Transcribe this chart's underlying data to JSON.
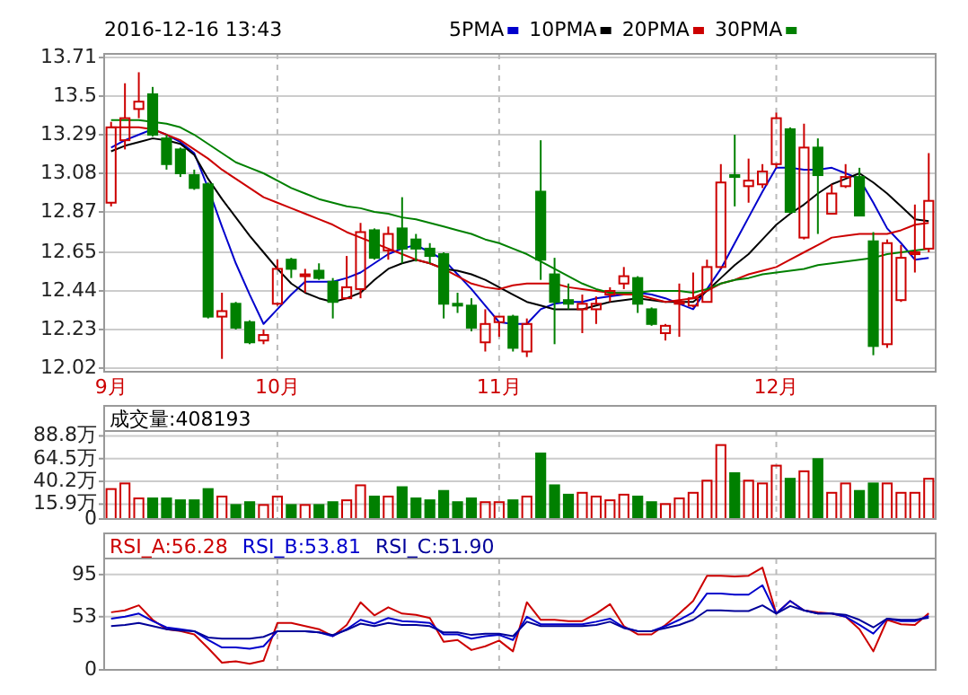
{
  "chart_data": [
    {
      "type": "candlestick",
      "title": "2016-12-16 13:43",
      "legend": "top",
      "grid": true,
      "categories": [
        "9月",
        null,
        null,
        null,
        null,
        null,
        null,
        null,
        null,
        null,
        null,
        null,
        "10月",
        null,
        null,
        null,
        null,
        null,
        null,
        null,
        null,
        null,
        null,
        null,
        null,
        null,
        null,
        null,
        "11月",
        null,
        null,
        null,
        null,
        null,
        null,
        null,
        null,
        null,
        null,
        null,
        null,
        null,
        null,
        null,
        null,
        null,
        null,
        null,
        "12月",
        null,
        null,
        null,
        null,
        null,
        null,
        null,
        null,
        null,
        null,
        null
      ],
      "ylim": [
        12.0,
        13.73
      ],
      "yticks": [
        13.71,
        13.5,
        13.29,
        13.08,
        12.87,
        12.65,
        12.44,
        12.23,
        12.02
      ],
      "ohlc": [
        [
          12.92,
          13.36,
          12.9,
          13.33
        ],
        [
          13.26,
          13.57,
          13.21,
          13.38
        ],
        [
          13.43,
          13.63,
          13.38,
          13.47
        ],
        [
          13.51,
          13.55,
          13.28,
          13.29
        ],
        [
          13.27,
          13.29,
          13.1,
          13.13
        ],
        [
          13.21,
          13.22,
          13.06,
          13.08
        ],
        [
          13.07,
          13.1,
          12.99,
          13.0
        ],
        [
          13.02,
          13.03,
          12.29,
          12.3
        ],
        [
          12.3,
          12.43,
          12.07,
          12.33
        ],
        [
          12.37,
          12.38,
          12.23,
          12.24
        ],
        [
          12.27,
          12.28,
          12.15,
          12.16
        ],
        [
          12.17,
          12.23,
          12.15,
          12.2
        ],
        [
          12.37,
          12.61,
          12.36,
          12.56
        ],
        [
          12.61,
          12.62,
          12.51,
          12.56
        ],
        [
          12.52,
          12.56,
          12.43,
          12.53
        ],
        [
          12.55,
          12.59,
          12.5,
          12.51
        ],
        [
          12.49,
          12.51,
          12.29,
          12.38
        ],
        [
          12.4,
          12.63,
          12.4,
          12.46
        ],
        [
          12.45,
          12.81,
          12.4,
          12.76
        ],
        [
          12.77,
          12.78,
          12.61,
          12.62
        ],
        [
          12.66,
          12.79,
          12.61,
          12.75
        ],
        [
          12.78,
          12.95,
          12.59,
          12.67
        ],
        [
          12.72,
          12.75,
          12.6,
          12.67
        ],
        [
          12.67,
          12.7,
          12.59,
          12.63
        ],
        [
          12.64,
          12.65,
          12.29,
          12.37
        ],
        [
          12.37,
          12.43,
          12.32,
          12.36
        ],
        [
          12.36,
          12.4,
          12.22,
          12.24
        ],
        [
          12.16,
          12.34,
          12.11,
          12.26
        ],
        [
          12.27,
          12.3,
          12.19,
          12.3
        ],
        [
          12.3,
          12.31,
          12.11,
          12.13
        ],
        [
          12.11,
          12.29,
          12.08,
          12.26
        ],
        [
          12.98,
          13.26,
          12.5,
          12.61
        ],
        [
          12.53,
          12.62,
          12.15,
          12.38
        ],
        [
          12.39,
          12.48,
          12.34,
          12.37
        ],
        [
          12.34,
          12.42,
          12.21,
          12.37
        ],
        [
          12.34,
          12.41,
          12.26,
          12.37
        ],
        [
          12.42,
          12.46,
          12.38,
          12.44
        ],
        [
          12.48,
          12.57,
          12.45,
          12.52
        ],
        [
          12.51,
          12.52,
          12.32,
          12.37
        ],
        [
          12.34,
          12.35,
          12.25,
          12.26
        ],
        [
          12.21,
          12.26,
          12.17,
          12.25
        ],
        [
          12.37,
          12.48,
          12.19,
          12.38
        ],
        [
          12.36,
          12.54,
          12.35,
          12.4
        ],
        [
          12.38,
          12.61,
          12.38,
          12.57
        ],
        [
          12.57,
          13.13,
          12.56,
          13.03
        ],
        [
          13.07,
          13.29,
          12.9,
          13.06
        ],
        [
          13.01,
          13.16,
          12.92,
          13.04
        ],
        [
          13.02,
          13.13,
          13.0,
          13.09
        ],
        [
          13.13,
          13.41,
          13.11,
          13.38
        ],
        [
          13.32,
          13.33,
          12.86,
          12.87
        ],
        [
          12.73,
          13.35,
          12.72,
          13.22
        ],
        [
          13.22,
          13.27,
          12.75,
          13.07
        ],
        [
          12.86,
          13.02,
          12.86,
          12.97
        ],
        [
          13.01,
          13.13,
          13.0,
          13.06
        ],
        [
          13.06,
          13.11,
          12.85,
          12.85
        ],
        [
          12.71,
          12.76,
          12.09,
          12.14
        ],
        [
          12.15,
          12.72,
          12.13,
          12.7
        ],
        [
          12.39,
          12.69,
          12.38,
          12.62
        ],
        [
          12.64,
          12.91,
          12.54,
          12.65
        ],
        [
          12.67,
          13.19,
          12.65,
          12.93
        ]
      ],
      "colors": [
        "#cc0000",
        "#cc0000",
        "#cc0000",
        "#008000",
        "#008000",
        "#008000",
        "#008000",
        "#008000",
        "#cc0000",
        "#008000",
        "#008000",
        "#cc0000",
        "#cc0000",
        "#008000",
        "#cc0000",
        "#008000",
        "#008000",
        "#cc0000",
        "#cc0000",
        "#008000",
        "#cc0000",
        "#008000",
        "#008000",
        "#008000",
        "#008000",
        "#008000",
        "#008000",
        "#cc0000",
        "#cc0000",
        "#008000",
        "#cc0000",
        "#008000",
        "#008000",
        "#008000",
        "#cc0000",
        "#cc0000",
        "#cc0000",
        "#cc0000",
        "#008000",
        "#008000",
        "#cc0000",
        "#cc0000",
        "#cc0000",
        "#cc0000",
        "#cc0000",
        "#008000",
        "#cc0000",
        "#cc0000",
        "#cc0000",
        "#008000",
        "#cc0000",
        "#008000",
        "#cc0000",
        "#cc0000",
        "#008000",
        "#008000",
        "#cc0000",
        "#cc0000",
        "#cc0000",
        "#cc0000"
      ],
      "series": [
        {
          "type": "line",
          "name": "5PMA",
          "color": "#0000cc",
          "values": [
            13.22,
            13.26,
            13.29,
            13.32,
            13.29,
            13.25,
            13.19,
            13.0,
            12.79,
            12.59,
            12.42,
            12.26,
            12.34,
            12.42,
            12.49,
            12.49,
            12.49,
            12.51,
            12.54,
            12.59,
            12.64,
            12.67,
            12.69,
            12.65,
            12.61,
            12.53,
            12.45,
            12.36,
            12.27,
            12.26,
            12.26,
            12.34,
            12.37,
            12.38,
            12.38,
            12.4,
            12.41,
            12.42,
            12.43,
            12.42,
            12.4,
            12.37,
            12.34,
            12.45,
            12.56,
            12.7,
            12.84,
            12.98,
            13.11,
            13.11,
            13.1,
            13.1,
            13.11,
            13.08,
            13.05,
            12.92,
            12.78,
            12.7,
            12.61,
            12.62
          ]
        },
        {
          "type": "line",
          "name": "10PMA",
          "color": "#000000",
          "values": [
            13.2,
            13.23,
            13.25,
            13.27,
            13.26,
            13.24,
            13.18,
            13.05,
            12.94,
            12.84,
            12.74,
            12.65,
            12.56,
            12.48,
            12.43,
            12.4,
            12.38,
            12.4,
            12.43,
            12.5,
            12.56,
            12.59,
            12.61,
            12.59,
            12.56,
            12.55,
            12.53,
            12.5,
            12.46,
            12.42,
            12.38,
            12.36,
            12.34,
            12.34,
            12.34,
            12.36,
            12.38,
            12.39,
            12.4,
            12.39,
            12.38,
            12.38,
            12.38,
            12.44,
            12.51,
            12.58,
            12.64,
            12.72,
            12.8,
            12.86,
            12.91,
            12.97,
            13.02,
            13.05,
            13.08,
            13.03,
            12.97,
            12.9,
            12.83,
            12.82
          ]
        },
        {
          "type": "line",
          "name": "20PMA",
          "color": "#cc0000",
          "values": [
            13.33,
            13.33,
            13.33,
            13.32,
            13.29,
            13.26,
            13.21,
            13.16,
            13.1,
            13.05,
            13.0,
            12.95,
            12.92,
            12.89,
            12.86,
            12.83,
            12.8,
            12.76,
            12.73,
            12.7,
            12.67,
            12.64,
            12.61,
            12.59,
            12.56,
            12.52,
            12.48,
            12.46,
            12.45,
            12.47,
            12.48,
            12.48,
            12.48,
            12.46,
            12.45,
            12.44,
            12.43,
            12.42,
            12.42,
            12.4,
            12.38,
            12.39,
            12.4,
            12.44,
            12.48,
            12.5,
            12.53,
            12.55,
            12.57,
            12.61,
            12.65,
            12.69,
            12.73,
            12.74,
            12.75,
            12.75,
            12.75,
            12.77,
            12.8,
            12.81
          ]
        },
        {
          "type": "line",
          "name": "30PMA",
          "color": "#008000",
          "values": [
            13.37,
            13.37,
            13.37,
            13.36,
            13.35,
            13.33,
            13.29,
            13.24,
            13.19,
            13.14,
            13.11,
            13.08,
            13.04,
            13.0,
            12.97,
            12.94,
            12.92,
            12.9,
            12.89,
            12.87,
            12.86,
            12.84,
            12.83,
            12.81,
            12.79,
            12.77,
            12.75,
            12.72,
            12.7,
            12.67,
            12.64,
            12.6,
            12.56,
            12.52,
            12.48,
            12.45,
            12.43,
            12.43,
            12.43,
            12.44,
            12.44,
            12.44,
            12.43,
            12.45,
            12.48,
            12.5,
            12.51,
            12.53,
            12.54,
            12.55,
            12.56,
            12.58,
            12.59,
            12.6,
            12.61,
            12.62,
            12.64,
            12.65,
            12.66,
            12.67
          ]
        }
      ]
    },
    {
      "type": "bar",
      "title": "成交量:408193",
      "grid": true,
      "tick_labels": "y",
      "categories": [
        null,
        null,
        null,
        null,
        null,
        null,
        null,
        null,
        null,
        null,
        null,
        null,
        null,
        null,
        null,
        null,
        null,
        null,
        null,
        null,
        null,
        null,
        null,
        null,
        null,
        null,
        null,
        null,
        null,
        null,
        null,
        null,
        null,
        null,
        null,
        null,
        null,
        null,
        null,
        null,
        null,
        null,
        null,
        null,
        null,
        null,
        null,
        null,
        null,
        null,
        null,
        null,
        null,
        null,
        null,
        null,
        null,
        null,
        null,
        null
      ],
      "ylim": [
        0,
        94
      ],
      "yticks": [
        {
          "value": 88.8,
          "label": "88.8万"
        },
        {
          "value": 64.5,
          "label": "64.5万"
        },
        {
          "value": 40.2,
          "label": "40.2万"
        },
        {
          "value": 15.9,
          "label": "15.9万"
        },
        0
      ],
      "values": [
        32,
        38,
        22,
        22,
        22,
        20,
        20,
        32,
        24,
        15,
        18,
        15,
        24,
        15,
        15,
        15,
        18,
        20,
        36,
        24,
        24,
        34,
        22,
        20,
        30,
        18,
        22,
        18,
        18,
        20,
        24,
        70,
        36,
        26,
        28,
        24,
        20,
        26,
        24,
        18,
        16,
        22,
        28,
        41,
        79,
        49,
        41,
        38,
        57,
        43,
        51,
        64,
        28,
        38,
        30,
        38,
        38,
        28,
        28,
        43
      ],
      "colors": [
        "#cc0000",
        "#cc0000",
        "#cc0000",
        "#008000",
        "#008000",
        "#008000",
        "#008000",
        "#008000",
        "#cc0000",
        "#008000",
        "#008000",
        "#cc0000",
        "#cc0000",
        "#008000",
        "#cc0000",
        "#008000",
        "#008000",
        "#cc0000",
        "#cc0000",
        "#008000",
        "#cc0000",
        "#008000",
        "#008000",
        "#008000",
        "#008000",
        "#008000",
        "#008000",
        "#cc0000",
        "#cc0000",
        "#008000",
        "#cc0000",
        "#008000",
        "#008000",
        "#008000",
        "#cc0000",
        "#cc0000",
        "#cc0000",
        "#cc0000",
        "#008000",
        "#008000",
        "#cc0000",
        "#cc0000",
        "#cc0000",
        "#cc0000",
        "#cc0000",
        "#008000",
        "#cc0000",
        "#cc0000",
        "#cc0000",
        "#008000",
        "#cc0000",
        "#008000",
        "#cc0000",
        "#cc0000",
        "#008000",
        "#008000",
        "#cc0000",
        "#cc0000",
        "#cc0000",
        "#cc0000"
      ]
    },
    {
      "type": "line",
      "legend": "top",
      "grid": true,
      "tick_labels": "y",
      "categories": [
        null,
        null,
        null,
        null,
        null,
        null,
        null,
        null,
        null,
        null,
        null,
        null,
        null,
        null,
        null,
        null,
        null,
        null,
        null,
        null,
        null,
        null,
        null,
        null,
        null,
        null,
        null,
        null,
        null,
        null,
        null,
        null,
        null,
        null,
        null,
        null,
        null,
        null,
        null,
        null,
        null,
        null,
        null,
        null,
        null,
        null,
        null,
        null,
        null,
        null,
        null,
        null,
        null,
        null,
        null,
        null,
        null,
        null,
        null,
        null
      ],
      "ylim": [
        0,
        111
      ],
      "yticks": [
        95,
        53,
        0
      ],
      "series": [
        {
          "name": "RSI_A:56.28",
          "color": "#cc0000",
          "values": [
            57.4,
            59.3,
            64.3,
            49.9,
            40.5,
            38.6,
            35.4,
            21.7,
            7.2,
            8.5,
            6.0,
            9.1,
            46.7,
            46.7,
            43.6,
            40.5,
            33.6,
            44.8,
            67.4,
            54.3,
            62.4,
            56.1,
            54.9,
            51.7,
            27.9,
            29.8,
            19.8,
            23.5,
            29.2,
            18.5,
            67.4,
            49.9,
            49.9,
            48.6,
            48.6,
            56.1,
            65.5,
            43.6,
            35.4,
            35.4,
            44.8,
            56.1,
            68.7,
            93.8,
            93.8,
            93.1,
            93.8,
            101.9,
            56.1,
            68.7,
            59.3,
            57.4,
            56.1,
            53.0,
            40.5,
            18.5,
            49.9,
            45.5,
            44.8,
            56.28
          ]
        },
        {
          "name": "RSI_B:53.81",
          "color": "#0000cc",
          "values": [
            51.1,
            53.0,
            56.1,
            48.6,
            42.3,
            40.5,
            38.6,
            29.8,
            22.3,
            22.3,
            21.0,
            23.5,
            38.6,
            38.6,
            38.6,
            37.3,
            33.6,
            40.5,
            49.9,
            46.1,
            51.7,
            48.6,
            48.0,
            46.7,
            35.4,
            35.4,
            31.1,
            33.6,
            34.8,
            29.8,
            53.0,
            45.5,
            45.5,
            45.5,
            45.5,
            48.0,
            51.1,
            42.3,
            38.6,
            38.6,
            43.6,
            49.9,
            57.4,
            76.2,
            76.2,
            75.0,
            75.0,
            84.4,
            56.1,
            68.7,
            59.3,
            56.1,
            56.1,
            53.0,
            44.8,
            36.1,
            51.1,
            48.6,
            48.6,
            53.81
          ]
        },
        {
          "name": "RSI_C:51.90",
          "color": "#000099",
          "values": [
            43.6,
            44.8,
            46.7,
            43.6,
            40.5,
            39.2,
            38.6,
            32.3,
            31.1,
            31.1,
            31.1,
            32.9,
            38.6,
            38.6,
            38.6,
            37.3,
            34.8,
            39.8,
            46.1,
            43.6,
            46.7,
            44.8,
            44.8,
            43.6,
            37.3,
            37.3,
            34.8,
            36.1,
            36.1,
            33.6,
            48.0,
            43.6,
            43.6,
            43.6,
            43.6,
            44.8,
            48.0,
            41.7,
            38.6,
            38.6,
            41.7,
            44.8,
            49.9,
            59.3,
            59.3,
            58.6,
            58.6,
            64.3,
            56.1,
            63.7,
            59.3,
            56.1,
            56.1,
            54.9,
            49.9,
            42.3,
            51.1,
            49.9,
            49.9,
            51.9
          ]
        }
      ]
    }
  ]
}
